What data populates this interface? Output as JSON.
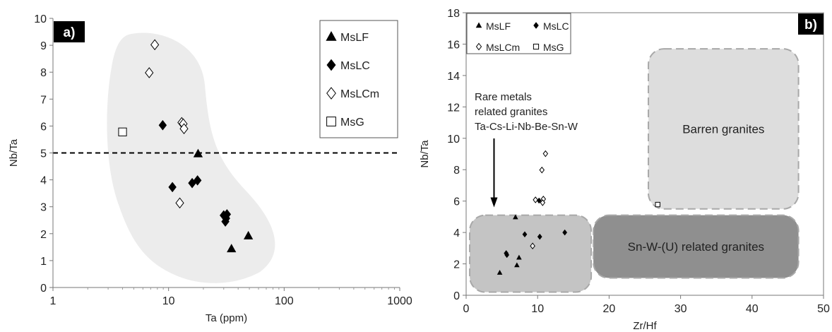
{
  "chart_data": [
    {
      "panel": "a)",
      "type": "scatter",
      "xlabel": "Ta (ppm)",
      "ylabel": "Nb/Ta",
      "x_scale": "log",
      "xlim": [
        1,
        1000
      ],
      "ylim": [
        0,
        10
      ],
      "x_ticks": [
        "1",
        "10",
        "100",
        "1000"
      ],
      "y_ticks": [
        "0",
        "1",
        "2",
        "3",
        "4",
        "5",
        "6",
        "7",
        "8",
        "9",
        "10"
      ],
      "grid": false,
      "legend_position": "top-right",
      "reference_line": {
        "axis": "y",
        "value": 5,
        "style": "dashed"
      },
      "series": [
        {
          "name": "MsLF",
          "marker": "triangle-filled",
          "points": [
            [
              18,
              4.97
            ],
            [
              35,
              1.44
            ],
            [
              49,
              1.92
            ]
          ]
        },
        {
          "name": "MsLC",
          "marker": "diamond-filled",
          "points": [
            [
              8.9,
              6.03
            ],
            [
              10.8,
              3.73
            ],
            [
              16,
              3.88
            ],
            [
              17.8,
              3.98
            ],
            [
              30,
              2.68
            ],
            [
              32,
              2.72
            ],
            [
              31,
              2.45
            ],
            [
              31.5,
              2.57
            ]
          ]
        },
        {
          "name": "MsLCm",
          "marker": "diamond-open",
          "points": [
            [
              7.6,
              9.02
            ],
            [
              6.8,
              7.98
            ],
            [
              13,
              6.13
            ],
            [
              13.4,
              6.08
            ],
            [
              13.6,
              5.9
            ],
            [
              12.5,
              3.14
            ]
          ]
        },
        {
          "name": "MsG",
          "marker": "square-open",
          "points": [
            [
              4.0,
              5.78
            ]
          ]
        }
      ]
    },
    {
      "panel": "b)",
      "type": "scatter",
      "xlabel": "Zr/Hf",
      "ylabel": "Nb/Ta",
      "xlim": [
        0,
        50
      ],
      "ylim": [
        0,
        18
      ],
      "x_ticks": [
        "0",
        "10",
        "20",
        "30",
        "40",
        "50"
      ],
      "y_ticks": [
        "0",
        "2",
        "4",
        "6",
        "8",
        "10",
        "12",
        "14",
        "16",
        "18"
      ],
      "grid": false,
      "legend_position": "top-left",
      "regions": [
        {
          "label": "",
          "x": [
            0.5,
            17.5
          ],
          "y": [
            0.2,
            5.1
          ],
          "fill": "#c4c4c4"
        },
        {
          "label": "Sn-W-(U) related granites",
          "x": [
            17.8,
            46.5
          ],
          "y": [
            1.1,
            5.1
          ],
          "fill": "#8f8f8f"
        },
        {
          "label": "Barren granites",
          "x": [
            25.5,
            46.5
          ],
          "y": [
            5.5,
            15.7
          ],
          "fill": "#dddddd"
        }
      ],
      "annotation": {
        "lines": [
          "Rare metals",
          "related granites",
          "Ta-Cs-Li-Nb-Be-Sn-W"
        ],
        "arrow_to": [
          3.9,
          5.6
        ]
      },
      "series": [
        {
          "name": "MsLF",
          "marker": "triangle-filled",
          "points": [
            [
              4.7,
              1.44
            ],
            [
              6.9,
              4.97
            ],
            [
              7.1,
              1.92
            ],
            [
              7.4,
              2.4
            ]
          ]
        },
        {
          "name": "MsLC",
          "marker": "diamond-filled",
          "points": [
            [
              5.6,
              2.68
            ],
            [
              5.7,
              2.57
            ],
            [
              8.2,
              3.88
            ],
            [
              10.3,
              3.73
            ],
            [
              13.8,
              4.0
            ],
            [
              10.2,
              6.03
            ]
          ]
        },
        {
          "name": "MsLCm",
          "marker": "diamond-open",
          "points": [
            [
              11.1,
              9.02
            ],
            [
              10.6,
              7.98
            ],
            [
              9.7,
              6.08
            ],
            [
              10.8,
              6.13
            ],
            [
              10.7,
              5.9
            ],
            [
              9.3,
              3.14
            ]
          ]
        },
        {
          "name": "MsG",
          "marker": "square-open",
          "points": [
            [
              26.8,
              5.78
            ]
          ]
        }
      ]
    }
  ]
}
